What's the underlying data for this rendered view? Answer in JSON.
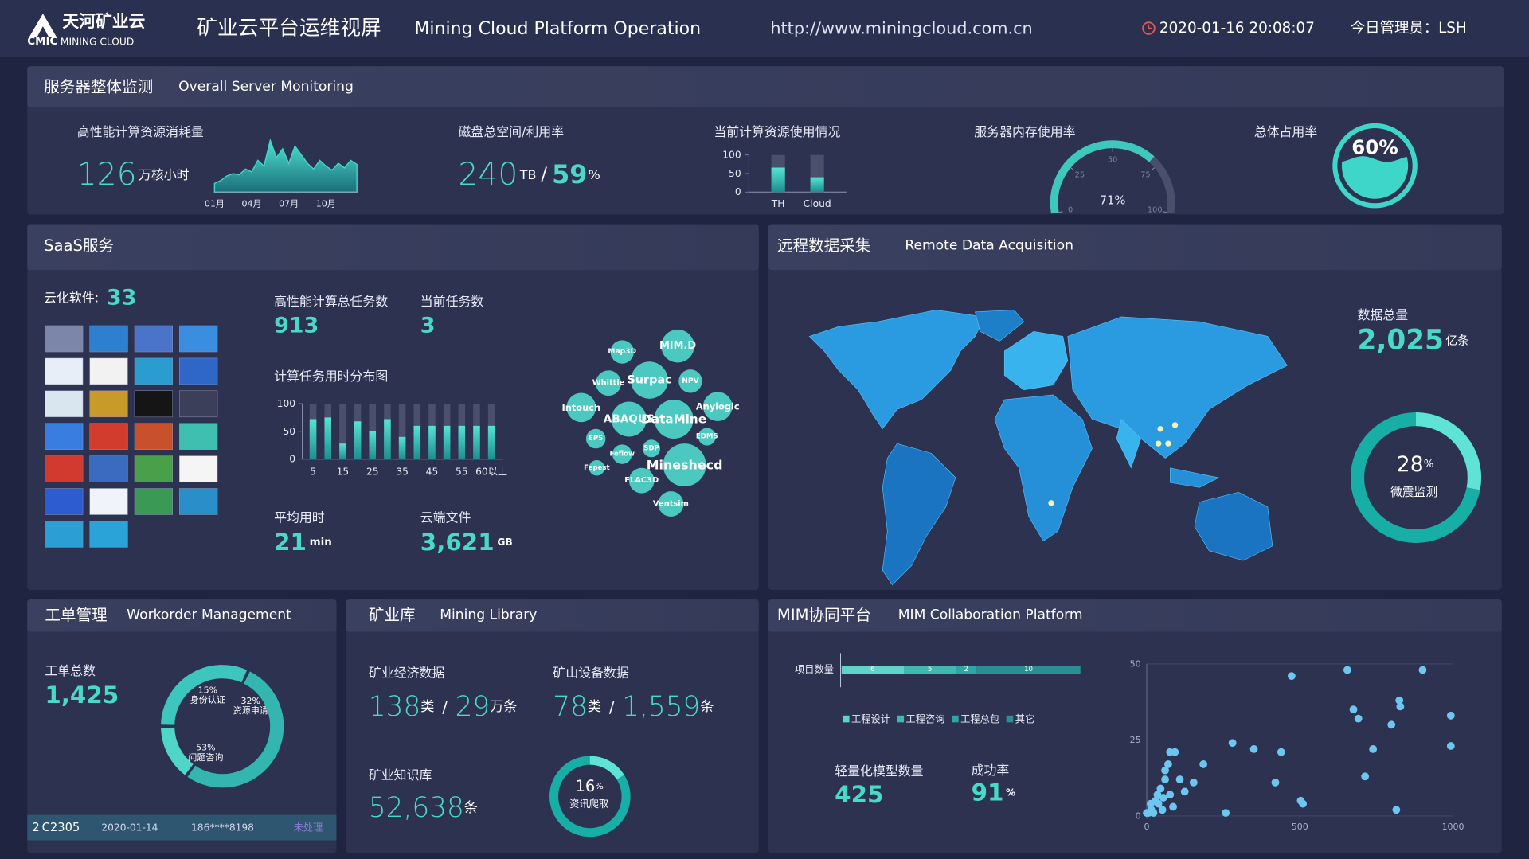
{
  "header": {
    "logo_cn": "天河矿业云",
    "logo_en_1": "CMIC",
    "logo_en_2": "MINING CLOUD",
    "title_cn": "矿业云平台运维视屏",
    "title_en": "Mining Cloud Platform Operation",
    "url": "http://www.miningcloud.com.cn",
    "datetime": "2020-01-16 20:08:07",
    "admin": "今日管理员：LSH"
  },
  "server": {
    "title_cn": "服务器整体监测",
    "title_en": "Overall Server Monitoring",
    "hpc": {
      "label": "高性能计算资源消耗量",
      "value": 126,
      "unit": "万核小时",
      "chart": {
        "type": "area",
        "color": "#3ed6c8",
        "categories": [
          "01月",
          null,
          null,
          null,
          null,
          null,
          "04月",
          null,
          null,
          null,
          null,
          null,
          "07月",
          null,
          null,
          null,
          null,
          null,
          "10月",
          null,
          null,
          null,
          null,
          null
        ],
        "values": [
          15,
          20,
          28,
          32,
          30,
          40,
          35,
          55,
          45,
          90,
          60,
          75,
          50,
          80,
          65,
          50,
          40,
          55,
          45,
          38,
          50,
          42,
          55,
          48
        ],
        "ylim": [
          0,
          100
        ]
      }
    },
    "disk": {
      "label": "磁盘总空间/利用率",
      "total": 240,
      "total_unit": "TB",
      "separator": "/",
      "rate": 59,
      "rate_unit": "%"
    },
    "compute": {
      "label": "当前计算资源使用情况",
      "chart": {
        "type": "bar",
        "color": "#3ed6c8",
        "categories": [
          "TH",
          "Cloud"
        ],
        "values": [
          66,
          40
        ],
        "ylim": [
          0,
          100
        ],
        "yticks": [
          0,
          50,
          100
        ]
      }
    },
    "memory": {
      "label": "服务器内存使用率",
      "chart": {
        "type": "gauge",
        "value": 71,
        "value_label": "71%",
        "ylim": [
          0,
          100
        ],
        "yticks": [
          0,
          25,
          50,
          75,
          100
        ]
      }
    },
    "total": {
      "label": "总体占用率",
      "chart": {
        "type": "liquid",
        "value": 60,
        "value_label": "60%"
      }
    }
  },
  "saas": {
    "title": "SaaS服务",
    "software_label": "云化软件:",
    "software_count": 33,
    "total_tasks_label": "高性能计算总任务数",
    "total_tasks": 913,
    "current_tasks_label": "当前任务数",
    "current_tasks": 3,
    "distribution": {
      "title": "计算任务用时分布图",
      "type": "bar",
      "color": "#3ed6c8",
      "categories": [
        "5",
        null,
        "15",
        null,
        "25",
        null,
        "35",
        null,
        "45",
        null,
        "55",
        null,
        "60以上"
      ],
      "values": [
        72,
        75,
        28,
        68,
        50,
        72,
        40,
        60,
        60,
        60,
        60,
        60,
        60
      ],
      "ylim": [
        0,
        100
      ],
      "yticks": [
        0,
        50,
        100
      ]
    },
    "avg_time_label": "平均用时",
    "avg_time": 21,
    "avg_time_unit": "min",
    "files_label": "云端文件",
    "files": "3,621",
    "files_unit": "GB",
    "bubbles": [
      "Map3D",
      "MIM.D",
      "Whittle",
      "Surpac",
      "NPV",
      "Intouch",
      "ABAQUS",
      "DataMine",
      "Anylogic",
      "EPS",
      "EDMS",
      "SDP",
      "Feflow",
      "Mineshecd",
      "Fepest",
      "FLAC3D",
      "Ventsim"
    ]
  },
  "remote": {
    "title_cn": "远程数据采集",
    "title_en": "Remote Data Acquisition",
    "total_label": "数据总量",
    "total": "2,025",
    "total_unit": "亿条",
    "monitor": {
      "type": "donut",
      "value": 28,
      "unit": "%",
      "label": "微震监测"
    }
  },
  "workorder": {
    "title_cn": "工单管理",
    "title_en": "Workorder Management",
    "total_label": "工单总数",
    "total": "1,425",
    "chart": {
      "type": "donut",
      "categories": [
        "身份认证",
        "资源申请",
        "问题咨询"
      ],
      "values": [
        15,
        32,
        53
      ],
      "value_labels": [
        "15%",
        "32%",
        "53%"
      ]
    },
    "row": [
      "2",
      "C2305",
      "2020-01-14",
      "186****8198",
      "未处理"
    ]
  },
  "library": {
    "title_cn": "矿业库",
    "title_en": "Mining Library",
    "econ_label": "矿业经济数据",
    "econ_types": 138,
    "econ_types_unit": "类",
    "econ_sep": "/",
    "econ_records": 29,
    "econ_records_unit": "万条",
    "equip_label": "矿山设备数据",
    "equip_types": 78,
    "equip_types_unit": "类",
    "equip_sep": "/",
    "equip_records": "1,559",
    "equip_records_unit": "条",
    "knowledge_label": "矿业知识库",
    "knowledge": "52,638",
    "knowledge_unit": "条",
    "crawl": {
      "type": "donut",
      "value": 16,
      "unit": "%",
      "label": "资讯爬取"
    }
  },
  "mim": {
    "title_cn": "MIM协同平台",
    "title_en": "MIM Collaboration Platform",
    "projects": {
      "type": "stacked_bar",
      "category": "项目数量",
      "xlim": [
        0,
        23
      ],
      "series": [
        {
          "name": "工程设计",
          "color": "#5fd3c8",
          "values": [
            6
          ]
        },
        {
          "name": "工程咨询",
          "color": "#3fb8b0",
          "values": [
            5
          ]
        },
        {
          "name": "工程总包",
          "color": "#2fa6a6",
          "values": [
            2
          ]
        },
        {
          "name": "其它",
          "color": "#2a8f92",
          "values": [
            10
          ]
        }
      ]
    },
    "models_label": "轻量化模型数量",
    "models": 425,
    "success_label": "成功率",
    "success": 91,
    "success_unit": "%",
    "scatter": {
      "type": "scatter",
      "color": "#6cc6f0",
      "xlim": [
        0,
        1000
      ],
      "xticks": [
        0,
        500,
        1000
      ],
      "ylim": [
        0,
        50
      ],
      "yticks": [
        0,
        25,
        50
      ],
      "x": [
        473,
        655,
        901,
        675,
        691,
        825,
        828,
        799,
        993,
        280,
        350,
        439,
        739,
        993,
        185,
        153,
        420,
        713,
        503,
        510,
        815,
        258,
        15,
        29,
        45,
        60,
        70,
        92,
        76,
        60,
        38,
        6,
        22,
        51,
        76,
        108,
        86,
        0,
        35,
        124,
        54,
        13
      ],
      "y": [
        46,
        48,
        48,
        35,
        32,
        38,
        36,
        30,
        33,
        24,
        22,
        21,
        22,
        23,
        17,
        11,
        11,
        13,
        5,
        4,
        2,
        1,
        2,
        5,
        9,
        12,
        17,
        21,
        21,
        15,
        4,
        1,
        1,
        2,
        7,
        12,
        3,
        1,
        7,
        8,
        6,
        4
      ]
    }
  }
}
